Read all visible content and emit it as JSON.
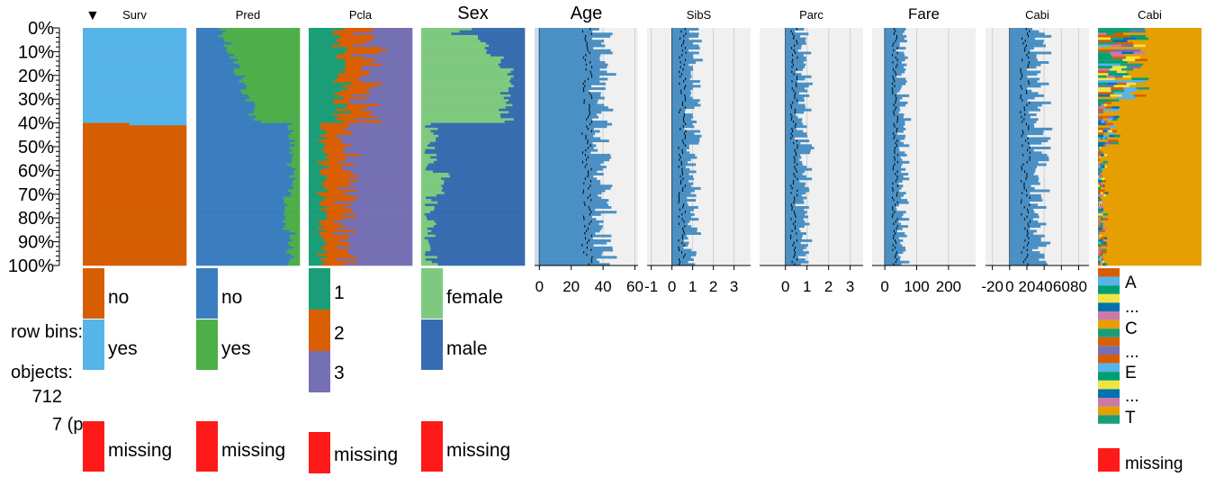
{
  "chart_data": {
    "type": "tableplot",
    "sort_indicator": "▼",
    "y_axis": {
      "tick_labels": [
        "0%",
        "10%",
        "20%",
        "30%",
        "40%",
        "50%",
        "60%",
        "70%",
        "80%",
        "90%",
        "100%"
      ]
    },
    "side_labels": [
      "row bins:",
      "objects:",
      "712",
      "7 (p"
    ],
    "colors": {
      "surv_no": "#D55E00",
      "surv_yes": "#56B4E9",
      "pred_no": "#3B7EC0",
      "pred_yes": "#4DAF4A",
      "pcla_1": "#1B9E77",
      "pcla_2": "#D95F02",
      "pcla_3": "#7570B3",
      "sex_female": "#7FC97F",
      "sex_male": "#386CB0",
      "numeric_bar": "#4A90C4",
      "panel_bg": "#F0F0F0",
      "negative_bg": "#C7DDEE",
      "missing": "#FF1A1A"
    },
    "columns": [
      {
        "id": "surv",
        "title": "Surv",
        "kind": "categorical",
        "categories": [
          "no",
          "yes"
        ],
        "missing_label": "missing",
        "yes_fraction_top": 0.4,
        "yes_fraction_bottom": 0.58
      },
      {
        "id": "pred",
        "title": "Pred",
        "kind": "categorical",
        "categories": [
          "no",
          "yes"
        ],
        "missing_label": "missing"
      },
      {
        "id": "pcla",
        "title": "Pcla",
        "kind": "categorical",
        "categories": [
          "1",
          "2",
          "3"
        ],
        "missing_label": "missing"
      },
      {
        "id": "sex",
        "title": "Sex",
        "kind": "categorical",
        "categories": [
          "female",
          "male"
        ],
        "missing_label": "missing"
      },
      {
        "id": "age",
        "title": "Age",
        "kind": "numeric",
        "tick_labels": [
          "0",
          "20",
          "40",
          "60"
        ],
        "range": [
          -3,
          62
        ],
        "mean": 30,
        "sd": 8
      },
      {
        "id": "sibs",
        "title": "SibS",
        "kind": "numeric",
        "tick_labels": [
          "-1",
          "0",
          "1",
          "2",
          "3"
        ],
        "range": [
          -1.2,
          3.8
        ],
        "mean": 0.5,
        "sd": 0.45
      },
      {
        "id": "parc",
        "title": "Parc",
        "kind": "numeric",
        "tick_labels": [
          "0",
          "1",
          "2",
          "3"
        ],
        "range": [
          -1.2,
          3.6
        ],
        "mean": 0.4,
        "sd": 0.4
      },
      {
        "id": "fare",
        "title": "Fare",
        "kind": "numeric",
        "tick_labels": [
          "0",
          "100",
          "200"
        ],
        "range": [
          -40,
          285
        ],
        "mean": 32,
        "sd": 22
      },
      {
        "id": "cabi",
        "title": "Cabi",
        "kind": "numeric",
        "tick_labels": [
          "-20",
          "0",
          "20",
          "40",
          "60",
          "80"
        ],
        "range": [
          -28,
          92
        ],
        "mean": 18,
        "sd": 14
      },
      {
        "id": "cabi2",
        "title": "Cabi",
        "kind": "categorical",
        "legend": [
          "A",
          "...",
          "C",
          "...",
          "E",
          "...",
          "T"
        ],
        "missing_label": "missing"
      }
    ]
  }
}
